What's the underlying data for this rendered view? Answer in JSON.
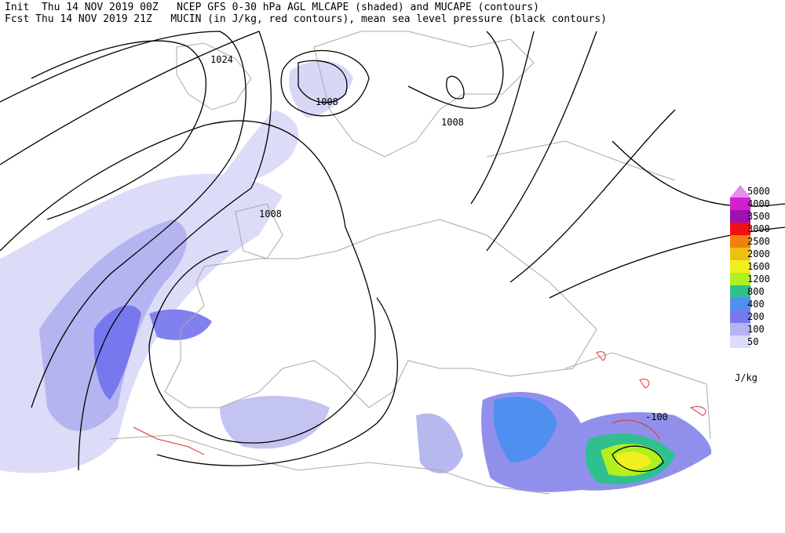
{
  "header": {
    "init": "Init  Thu 14 NOV 2019 00Z   NCEP GFS 0-30 hPa AGL MLCAPE (shaded) and MUCAPE (contours)",
    "fcst": "Fcst Thu 14 NOV 2019 21Z   MUCIN (in J/kg, red contours), mean sea level pressure (black contours)"
  },
  "contour_labels": [
    "1024",
    "1008",
    "1008",
    "1008",
    "-100"
  ],
  "legend": {
    "levels": [
      5000,
      4000,
      3500,
      3000,
      2500,
      2000,
      1600,
      1200,
      800,
      400,
      200,
      100,
      50
    ],
    "colors": [
      "#e68ef0",
      "#d020d0",
      "#a010b0",
      "#f01010",
      "#f08010",
      "#f0c010",
      "#f0f020",
      "#b0f020",
      "#30c090",
      "#4f8ff0",
      "#7878ee",
      "#b4b4f0",
      "#dcdcf8"
    ],
    "unit": "J/kg"
  }
}
